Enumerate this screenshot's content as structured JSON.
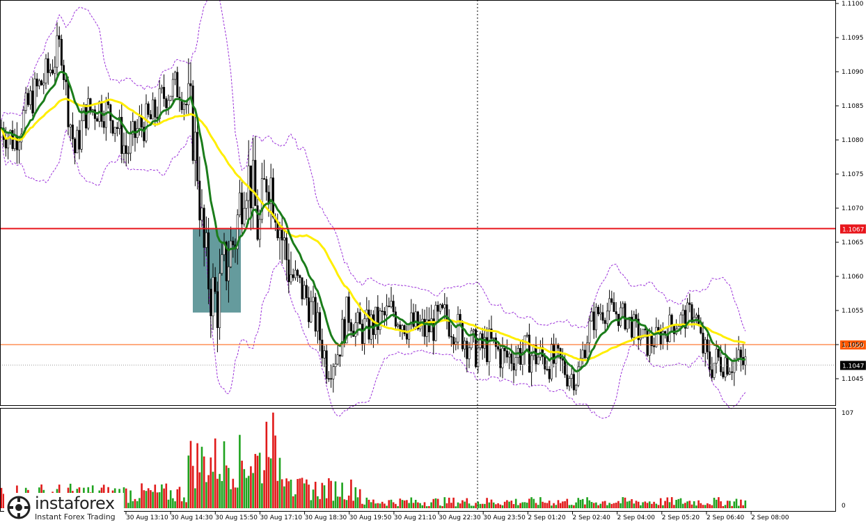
{
  "chart_data": {
    "type": "candlestick",
    "yaxis": {
      "ylim": [
        1.1041,
        1.11
      ],
      "ticks": [
        "1.1100",
        "1.1095",
        "1.1090",
        "1.1085",
        "1.1080",
        "1.1075",
        "1.1070",
        "1.1065",
        "1.1060",
        "1.1055",
        "1.1050",
        "1.1045"
      ]
    },
    "xaxis": {
      "ticks": [
        "30 Aug 13:10",
        "30 Aug 14:30",
        "30 Aug 15:50",
        "30 Aug 17:10",
        "30 Aug 18:30",
        "30 Aug 19:50",
        "30 Aug 21:10",
        "30 Aug 22:30",
        "30 Aug 23:50",
        "2 Sep 01:20",
        "2 Sep 02:40",
        "2 Sep 04:00",
        "2 Sep 05:20",
        "2 Sep 06:40",
        "2 Sep 08:00"
      ]
    },
    "price_levels": [
      {
        "value": 1.1067,
        "label": "1.1067",
        "color": "#e8161c"
      },
      {
        "value": 1.105,
        "label": "1.1050",
        "color": "#ff5a00"
      },
      {
        "value": 1.1047,
        "label": "1.1047",
        "color": "#000000"
      }
    ],
    "highlight_zone": {
      "y_top": 1.1067,
      "y_bottom": 1.10547,
      "color": "#4a8a8c"
    },
    "volume": {
      "max_label": "107",
      "min_label": "0",
      "max": 107
    },
    "colors": {
      "candle": "#000000",
      "ma_fast": "#1b7d1b",
      "ma_slow": "#ffee00",
      "bands": "#9b30d9",
      "volume_up": "#1fa31f",
      "volume_down": "#e01a1a"
    }
  },
  "watermark": {
    "brand": "instaforex",
    "tagline": "Instant Forex Trading"
  }
}
